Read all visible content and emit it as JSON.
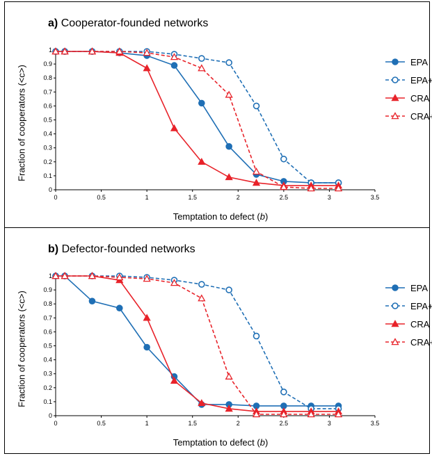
{
  "colors": {
    "blue": "#1f6fb5",
    "red": "#e8232a"
  },
  "chart_data": [
    {
      "type": "line",
      "title_tag": "a)",
      "title": "Cooperator-founded networks",
      "xlabel_main": "Temptation to defect (",
      "xlabel_var": "b",
      "xlabel_end": ")",
      "ylabel": "Fraction of cooperators (<c>)",
      "xlim": [
        0,
        3.5
      ],
      "ylim": [
        0,
        1
      ],
      "xticks": [
        "0",
        "0.5",
        "1",
        "1.5",
        "2",
        "2.5",
        "3",
        "3.5"
      ],
      "yticks": [
        "0",
        "0.1",
        "0.2",
        "0.3",
        "0.4",
        "0.5",
        "0.6",
        "0.7",
        "0.8",
        "0.9",
        "1"
      ],
      "legend": "right",
      "x": [
        0,
        0.1,
        0.4,
        0.7,
        1.0,
        1.3,
        1.6,
        1.9,
        2.2,
        2.5,
        2.8,
        3.1
      ],
      "series": [
        {
          "name": "EPA",
          "color": "#1f6fb5",
          "dashed": false,
          "marker": "circle",
          "filled": true,
          "values": [
            0.99,
            0.99,
            0.99,
            0.98,
            0.96,
            0.89,
            0.62,
            0.31,
            0.11,
            0.06,
            0.05,
            0.05
          ]
        },
        {
          "name": "EPA+",
          "color": "#1f6fb5",
          "dashed": true,
          "marker": "circle",
          "filled": false,
          "values": [
            0.99,
            0.99,
            0.99,
            0.99,
            0.99,
            0.97,
            0.94,
            0.91,
            0.6,
            0.22,
            0.05,
            0.05
          ]
        },
        {
          "name": "CRA",
          "color": "#e8232a",
          "dashed": false,
          "marker": "triangle",
          "filled": true,
          "values": [
            0.99,
            0.99,
            0.99,
            0.98,
            0.87,
            0.44,
            0.2,
            0.09,
            0.05,
            0.03,
            0.03,
            0.03
          ]
        },
        {
          "name": "CRA+",
          "color": "#e8232a",
          "dashed": true,
          "marker": "triangle",
          "filled": false,
          "values": [
            0.99,
            0.99,
            0.99,
            0.99,
            0.98,
            0.95,
            0.87,
            0.68,
            0.13,
            0.02,
            0.01,
            0.01
          ]
        }
      ]
    },
    {
      "type": "line",
      "title_tag": "b)",
      "title": "Defector-founded networks",
      "xlabel_main": "Temptation to defect (",
      "xlabel_var": "b",
      "xlabel_end": ")",
      "ylabel": "Fraction of cooperators (<c>)",
      "xlim": [
        0,
        3.5
      ],
      "ylim": [
        0,
        1
      ],
      "xticks": [
        "0",
        "0.5",
        "1",
        "1.5",
        "2",
        "2.5",
        "3",
        "3.5"
      ],
      "yticks": [
        "0",
        "0.1",
        "0.2",
        "0.3",
        "0.4",
        "0.5",
        "0.6",
        "0.7",
        "0.8",
        "0.9",
        "1"
      ],
      "legend": "right",
      "x": [
        0,
        0.1,
        0.4,
        0.7,
        1.0,
        1.3,
        1.6,
        1.9,
        2.2,
        2.5,
        2.8,
        3.1
      ],
      "series": [
        {
          "name": "EPA",
          "color": "#1f6fb5",
          "dashed": false,
          "marker": "circle",
          "filled": true,
          "values": [
            1.0,
            1.0,
            0.82,
            0.77,
            0.49,
            0.28,
            0.08,
            0.08,
            0.07,
            0.07,
            0.07,
            0.07
          ]
        },
        {
          "name": "EPA+",
          "color": "#1f6fb5",
          "dashed": true,
          "marker": "circle",
          "filled": false,
          "values": [
            1.0,
            1.0,
            1.0,
            1.0,
            0.99,
            0.97,
            0.94,
            0.9,
            0.57,
            0.17,
            0.05,
            0.05
          ]
        },
        {
          "name": "CRA",
          "color": "#e8232a",
          "dashed": false,
          "marker": "triangle",
          "filled": true,
          "values": [
            1.0,
            1.0,
            1.0,
            0.97,
            0.7,
            0.25,
            0.09,
            0.05,
            0.03,
            0.03,
            0.03,
            0.03
          ]
        },
        {
          "name": "CRA+",
          "color": "#e8232a",
          "dashed": true,
          "marker": "triangle",
          "filled": false,
          "values": [
            1.0,
            1.0,
            1.0,
            0.99,
            0.98,
            0.95,
            0.84,
            0.28,
            0.01,
            0.01,
            0.01,
            0.01
          ]
        }
      ]
    }
  ]
}
